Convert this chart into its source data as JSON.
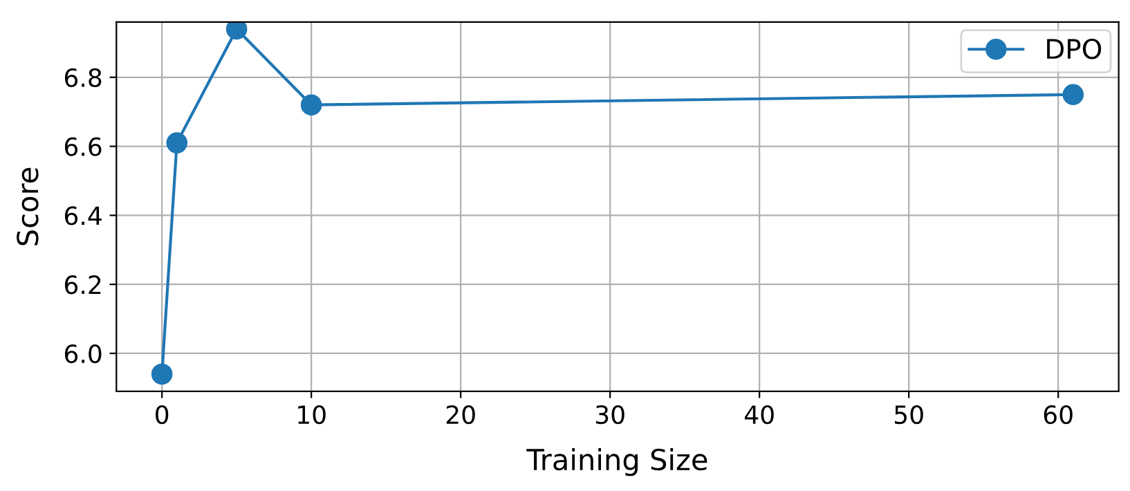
{
  "chart_data": {
    "type": "line",
    "xlabel": "Training Size",
    "ylabel": "Score",
    "x": [
      0,
      1,
      5,
      10,
      61
    ],
    "series": [
      {
        "name": "DPO",
        "color": "#1f77b4",
        "values": [
          5.94,
          6.61,
          6.94,
          6.72,
          6.75
        ]
      }
    ],
    "xlim": [
      -3.05,
      64.05
    ],
    "ylim": [
      5.89,
      6.96
    ],
    "xticks": [
      0,
      10,
      20,
      30,
      40,
      50,
      60
    ],
    "yticks": [
      {
        "value": 6,
        "label": "6.0"
      },
      6.2,
      6.4,
      6.6,
      6.8
    ],
    "grid": true,
    "legend": "top right",
    "marker": "circle",
    "line_style": "solid"
  }
}
